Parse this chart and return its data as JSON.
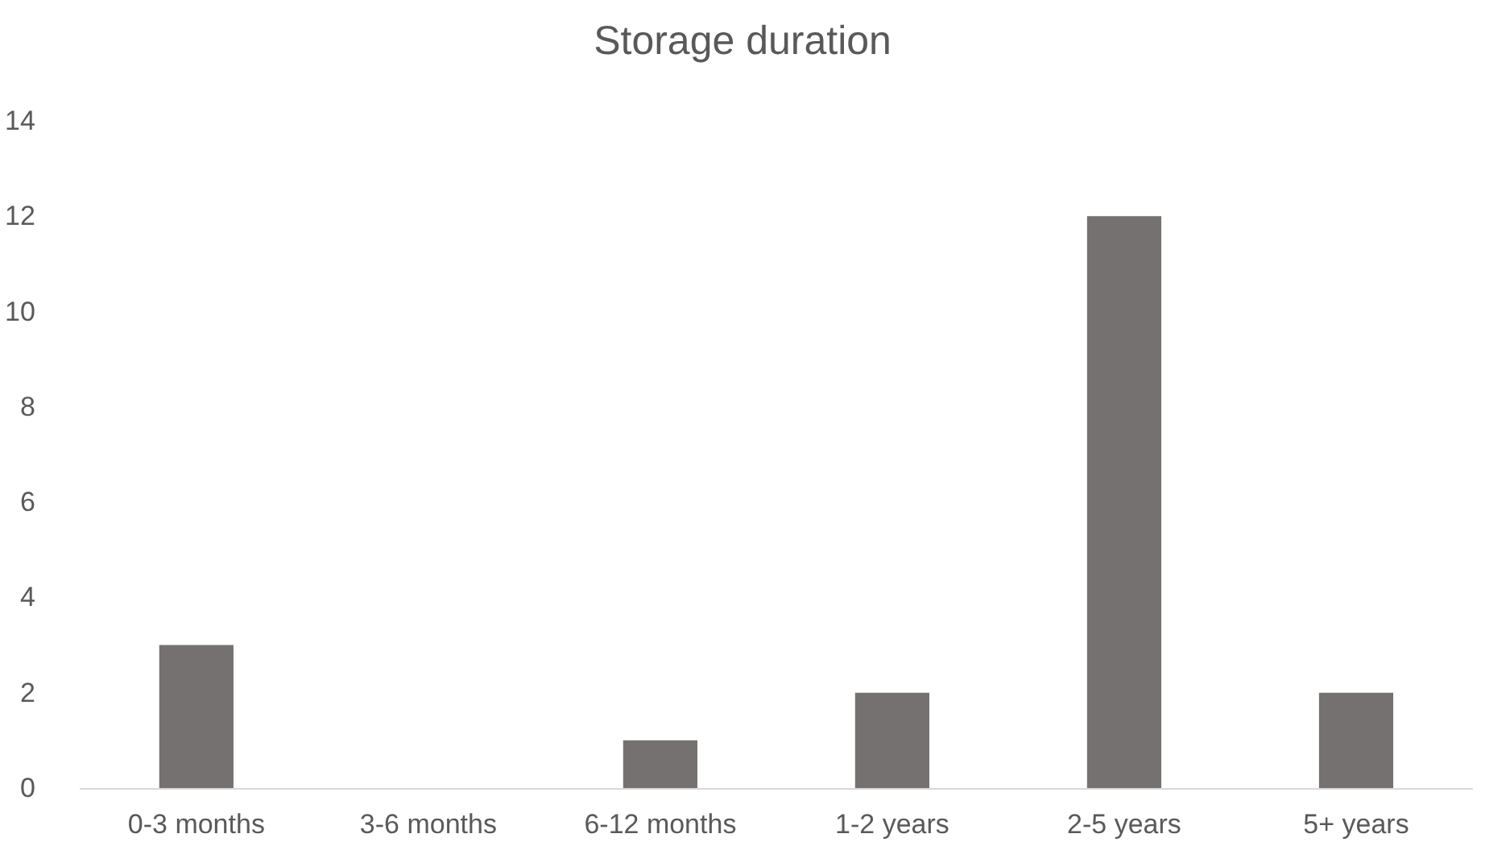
{
  "chart_data": {
    "type": "bar",
    "title": "Storage duration",
    "categories": [
      "0-3 months",
      "3-6 months",
      "6-12 months",
      "1-2 years",
      "2-5 years",
      "5+ years"
    ],
    "values": [
      3,
      0,
      1,
      2,
      12,
      2
    ],
    "color": "#757171",
    "ylim": [
      0,
      14
    ],
    "yticks": [
      0,
      2,
      4,
      6,
      8,
      10,
      12,
      14
    ]
  }
}
